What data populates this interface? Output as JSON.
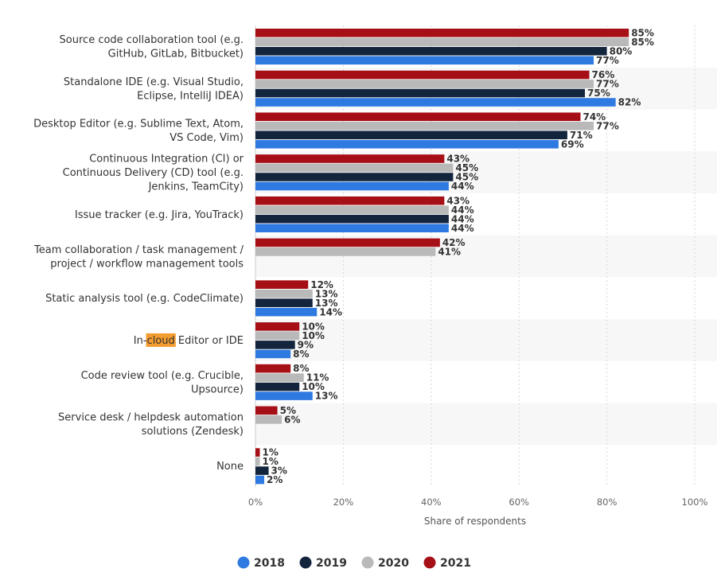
{
  "chart_data": {
    "type": "bar",
    "orientation": "horizontal",
    "title": "",
    "xlabel": "Share of respondents",
    "ylabel": "",
    "xlim": [
      0,
      100
    ],
    "xticks": [
      "0%",
      "20%",
      "40%",
      "60%",
      "80%",
      "100%"
    ],
    "categories": [
      [
        "Source code collaboration tool (e.g.",
        "GitHub, GitLab, Bitbucket)"
      ],
      [
        "Standalone IDE (e.g. Visual Studio,",
        "Eclipse, IntelliJ IDEA)"
      ],
      [
        "Desktop Editor (e.g. Sublime Text, Atom,",
        "VS Code, Vim)"
      ],
      [
        "Continuous Integration (CI) or",
        "Continuous Delivery (CD) tool (e.g.",
        "Jenkins, TeamCity)"
      ],
      [
        "Issue tracker (e.g. Jira, YouTrack)"
      ],
      [
        "Team collaboration / task management /",
        "project / workflow management tools"
      ],
      [
        "Static analysis tool (e.g. CodeClimate)"
      ],
      [
        "In-cloud Editor or IDE"
      ],
      [
        "Code review tool (e.g. Crucible,",
        "Upsource)"
      ],
      [
        "Service desk / helpdesk automation",
        "solutions (Zendesk)"
      ],
      [
        "None"
      ]
    ],
    "highlight": {
      "category_index": 7,
      "text": "cloud"
    },
    "series": [
      {
        "name": "2021",
        "color": "#a50f15",
        "values": [
          85,
          76,
          74,
          43,
          43,
          42,
          12,
          10,
          8,
          5,
          1
        ]
      },
      {
        "name": "2020",
        "color": "#b9b9b9",
        "values": [
          85,
          77,
          77,
          45,
          44,
          41,
          13,
          10,
          11,
          6,
          1
        ]
      },
      {
        "name": "2019",
        "color": "#13253d",
        "values": [
          80,
          75,
          71,
          45,
          44,
          null,
          13,
          9,
          10,
          null,
          3
        ]
      },
      {
        "name": "2018",
        "color": "#2f7ae0",
        "values": [
          77,
          82,
          69,
          44,
          44,
          null,
          14,
          8,
          13,
          null,
          2
        ]
      }
    ],
    "legend": {
      "placement": "bottom-center",
      "order": [
        "2018",
        "2019",
        "2020",
        "2021"
      ]
    },
    "value_suffix": "%"
  }
}
